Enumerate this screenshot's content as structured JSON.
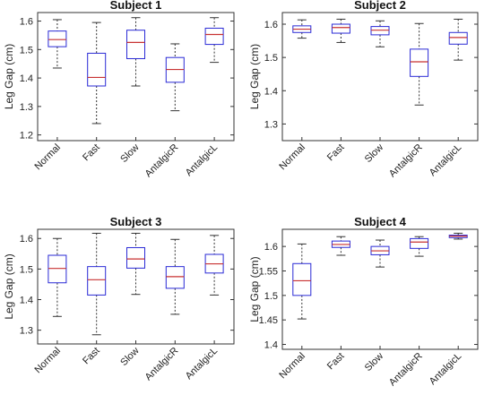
{
  "chart_data": [
    {
      "type": "box",
      "title": "Subject 1",
      "ylabel": "Leg Gap (cm)",
      "categories": [
        "Normal",
        "Fast",
        "Slow",
        "AntalgicR",
        "AntalgicL"
      ],
      "yticks": [
        "1.2",
        "1.3",
        "1.4",
        "1.5",
        "1.6"
      ],
      "ylim": [
        1.18,
        1.63
      ],
      "boxes": [
        {
          "min": 1.435,
          "q1": 1.51,
          "median": 1.535,
          "q3": 1.565,
          "max": 1.605
        },
        {
          "min": 1.24,
          "q1": 1.372,
          "median": 1.402,
          "q3": 1.487,
          "max": 1.595
        },
        {
          "min": 1.372,
          "q1": 1.468,
          "median": 1.525,
          "q3": 1.568,
          "max": 1.612
        },
        {
          "min": 1.285,
          "q1": 1.385,
          "median": 1.43,
          "q3": 1.472,
          "max": 1.52
        },
        {
          "min": 1.455,
          "q1": 1.518,
          "median": 1.553,
          "q3": 1.575,
          "max": 1.612
        }
      ]
    },
    {
      "type": "box",
      "title": "Subject 2",
      "ylabel": "Leg Gap (cm)",
      "categories": [
        "Normal",
        "Fast",
        "Slow",
        "AntalgicR",
        "AntalgicL"
      ],
      "yticks": [
        "1.3",
        "1.4",
        "1.5",
        "1.6"
      ],
      "ylim": [
        1.25,
        1.635
      ],
      "boxes": [
        {
          "min": 1.558,
          "q1": 1.575,
          "median": 1.585,
          "q3": 1.595,
          "max": 1.613
        },
        {
          "min": 1.545,
          "q1": 1.573,
          "median": 1.59,
          "q3": 1.6,
          "max": 1.615
        },
        {
          "min": 1.532,
          "q1": 1.568,
          "median": 1.582,
          "q3": 1.593,
          "max": 1.61
        },
        {
          "min": 1.357,
          "q1": 1.443,
          "median": 1.487,
          "q3": 1.525,
          "max": 1.602
        },
        {
          "min": 1.492,
          "q1": 1.54,
          "median": 1.56,
          "q3": 1.575,
          "max": 1.615
        }
      ]
    },
    {
      "type": "box",
      "title": "Subject 3",
      "ylabel": "Leg Gap (cm)",
      "categories": [
        "Normal",
        "Fast",
        "Slow",
        "AntalgicR",
        "AntalgicL"
      ],
      "yticks": [
        "1.3",
        "1.4",
        "1.5",
        "1.6"
      ],
      "ylim": [
        1.255,
        1.63
      ],
      "boxes": [
        {
          "min": 1.345,
          "q1": 1.455,
          "median": 1.502,
          "q3": 1.545,
          "max": 1.6
        },
        {
          "min": 1.285,
          "q1": 1.415,
          "median": 1.465,
          "q3": 1.508,
          "max": 1.617
        },
        {
          "min": 1.417,
          "q1": 1.503,
          "median": 1.533,
          "q3": 1.57,
          "max": 1.617
        },
        {
          "min": 1.352,
          "q1": 1.437,
          "median": 1.475,
          "q3": 1.508,
          "max": 1.597
        },
        {
          "min": 1.415,
          "q1": 1.487,
          "median": 1.517,
          "q3": 1.548,
          "max": 1.61
        }
      ]
    },
    {
      "type": "box",
      "title": "Subject 4",
      "ylabel": "Leg Gap (cm)",
      "categories": [
        "Normal",
        "Fast",
        "Slow",
        "AntalgicR",
        "AntalgicL"
      ],
      "yticks": [
        "1.4",
        "1.45",
        "1.5",
        "1.55",
        "1.6"
      ],
      "ylim": [
        1.39,
        1.635
      ],
      "boxes": [
        {
          "min": 1.452,
          "q1": 1.5,
          "median": 1.53,
          "q3": 1.565,
          "max": 1.605
        },
        {
          "min": 1.582,
          "q1": 1.598,
          "median": 1.604,
          "q3": 1.611,
          "max": 1.62
        },
        {
          "min": 1.558,
          "q1": 1.583,
          "median": 1.591,
          "q3": 1.6,
          "max": 1.613
        },
        {
          "min": 1.58,
          "q1": 1.596,
          "median": 1.609,
          "q3": 1.616,
          "max": 1.62
        },
        {
          "min": 1.615,
          "q1": 1.618,
          "median": 1.621,
          "q3": 1.623,
          "max": 1.627
        }
      ]
    }
  ],
  "colors": {
    "box": "#2a2ad6",
    "median": "#c83232",
    "whisker": "#333333",
    "axis": "#333333"
  }
}
